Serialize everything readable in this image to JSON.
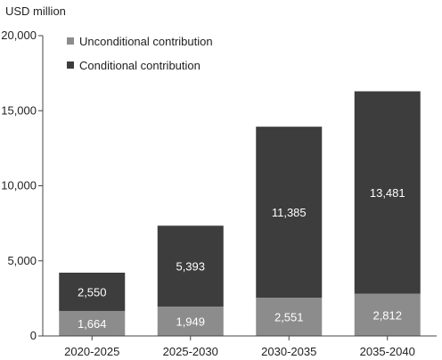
{
  "chart_data": {
    "type": "bar",
    "stacked": true,
    "unit_label": "USD million",
    "categories": [
      "2020-2025",
      "2025-2030",
      "2030-2035",
      "2035-2040"
    ],
    "series": [
      {
        "name": "Unconditional contribution",
        "values": [
          1664,
          1949,
          2551,
          2812
        ],
        "color": "#8c8c8c"
      },
      {
        "name": "Conditional contribution",
        "values": [
          2550,
          5393,
          11385,
          13481
        ],
        "color": "#3d3d3d"
      }
    ],
    "data_labels": [
      [
        "1,664",
        "1,949",
        "2,551",
        "2,812"
      ],
      [
        "2,550",
        "5,393",
        "11,385",
        "13,481"
      ]
    ],
    "yticks": [
      "0",
      "5,000",
      "10,000",
      "15,000",
      "20,000"
    ],
    "ytick_values": [
      0,
      5000,
      10000,
      15000,
      20000
    ],
    "ylim": [
      0,
      20000
    ],
    "grid": false,
    "legend": "top-left"
  }
}
